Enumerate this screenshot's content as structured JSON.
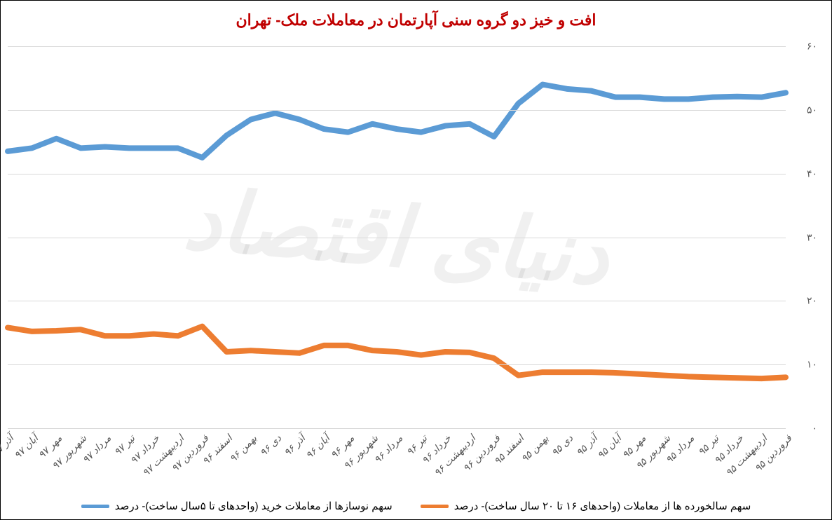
{
  "chart": {
    "type": "line",
    "title": "افت و خیز دو گروه سنی آپارتمان در معاملات ملک- تهران",
    "title_color": "#c00000",
    "title_fontsize": 22,
    "background_color": "#ffffff",
    "border_color": "#000000",
    "grid_color": "#d9d9d9",
    "axis_label_color": "#595959",
    "ylim": [
      0,
      60
    ],
    "ytick_step": 10,
    "yticks": [
      "۰",
      "۱۰",
      "۲۰",
      "۳۰",
      "۴۰",
      "۵۰",
      "۶۰"
    ],
    "categories": [
      "فروردین ۹۵",
      "اردیبهشت ۹۵",
      "خرداد ۹۵",
      "تیر ۹۵",
      "مرداد ۹۵",
      "شهریور ۹۵",
      "مهر ۹۵",
      "آبان ۹۵",
      "آذر ۹۵",
      "دی ۹۵",
      "بهمن ۹۵",
      "اسفند ۹۵",
      "فروردین ۹۶",
      "اردیبهشت ۹۶",
      "خرداد ۹۶",
      "تیر ۹۶",
      "مرداد ۹۶",
      "شهریور ۹۶",
      "مهر ۹۶",
      "آبان ۹۶",
      "آذر ۹۶",
      "دی ۹۶",
      "بهمن ۹۶",
      "اسفند ۹۶",
      "فروردین ۹۷",
      "اردیبهشت ۹۷",
      "خرداد ۹۷",
      "تیر ۹۷",
      "مرداد ۹۷",
      "شهریور ۹۷",
      "مهر ۹۷",
      "آبان ۹۷",
      "آذر ۹۷"
    ],
    "series": [
      {
        "name": "سهم سالخورده ها از معاملات (واحدهای ۱۶ تا ۲۰ سال ساخت)- درصد",
        "color": "#ed7d31",
        "line_width": 4,
        "values": [
          8.0,
          7.8,
          7.9,
          8.0,
          8.1,
          8.3,
          8.5,
          8.7,
          8.8,
          8.8,
          8.8,
          8.3,
          11.0,
          11.9,
          12.0,
          11.5,
          12.0,
          12.2,
          13.0,
          13.0,
          11.8,
          12.0,
          12.2,
          12.0,
          16.0,
          14.5,
          14.8,
          14.5,
          14.5,
          15.5,
          15.3,
          15.2,
          15.8
        ]
      },
      {
        "name": "سهم نوسازها از معاملات خرید (واحدهای تا ۵سال ساخت)- درصد",
        "color": "#5b9bd5",
        "line_width": 4,
        "values": [
          52.7,
          52.0,
          52.1,
          52.0,
          51.7,
          51.7,
          52.0,
          52.0,
          53.0,
          53.3,
          54.0,
          51.0,
          45.8,
          47.8,
          47.5,
          46.5,
          47.0,
          47.8,
          46.5,
          47.0,
          48.5,
          49.5,
          48.5,
          46.0,
          42.5,
          44.0,
          44.0,
          44.0,
          44.2,
          44.0,
          45.5,
          44.0,
          43.5
        ]
      }
    ],
    "legend_position": "bottom",
    "watermark_text": "دنیای اقتصاد",
    "watermark_color": "rgba(0,0,0,0.06)",
    "x_direction": "rtl"
  }
}
